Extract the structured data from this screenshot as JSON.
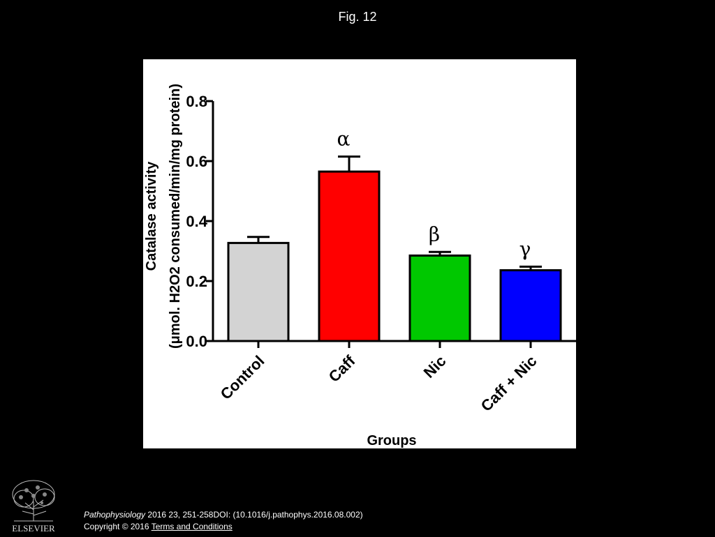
{
  "figure_label": "Fig. 12",
  "chart_data": {
    "type": "bar",
    "title": "",
    "xlabel": "Groups",
    "ylabel_line1": "Catalase activity",
    "ylabel_line2": "(μmol. H2O2 consumed/min/mg protein)",
    "ylim": [
      0,
      0.8
    ],
    "yticks": [
      "0.0",
      "0.2",
      "0.4",
      "0.6",
      "0.8"
    ],
    "ytick_values": [
      0,
      0.2,
      0.4,
      0.6,
      0.8
    ],
    "categories": [
      "Control",
      "Caff",
      "Nic",
      "Caff + Nic"
    ],
    "values": [
      0.327,
      0.565,
      0.285,
      0.236
    ],
    "errors": [
      0.02,
      0.05,
      0.012,
      0.012
    ],
    "bar_colors": [
      "#d3d3d3",
      "#ff0000",
      "#00c800",
      "#0000ff"
    ],
    "annotations": [
      "",
      "α",
      "β",
      "γ"
    ],
    "grid": false
  },
  "citation": {
    "journal": "Pathophysiology",
    "details": " 2016 23, 251-258DOI: (10.1016/j.pathophys.2016.08.002)",
    "copyright": "Copyright © 2016 ",
    "terms_link": " Terms and Conditions"
  },
  "publisher_logo": "ELSEVIER"
}
